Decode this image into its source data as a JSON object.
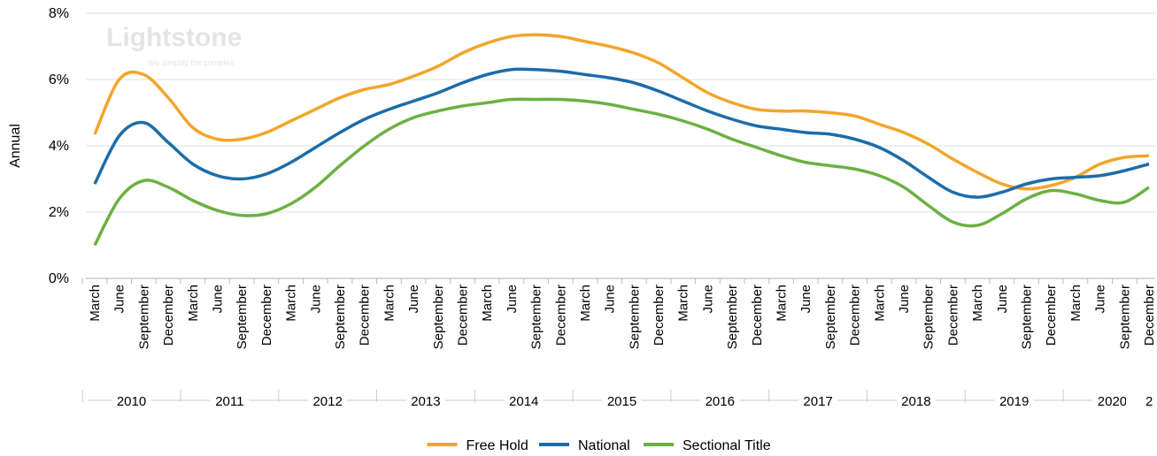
{
  "chart_data": {
    "type": "line",
    "y_label": "Annual",
    "watermark": {
      "name": "Lightstone",
      "tagline": "We simplify the complex"
    },
    "categories": [
      "March",
      "June",
      "September",
      "December",
      "March",
      "June",
      "September",
      "December",
      "March",
      "June",
      "September",
      "December",
      "March",
      "June",
      "September",
      "December",
      "March",
      "June",
      "September",
      "December",
      "March",
      "June",
      "September",
      "December",
      "March",
      "June",
      "September",
      "December",
      "March",
      "June",
      "September",
      "December",
      "March",
      "June",
      "September",
      "December",
      "March",
      "June",
      "September",
      "December",
      "March",
      "June",
      "September",
      "December"
    ],
    "year_groups": [
      "2010",
      "2011",
      "2012",
      "2013",
      "2014",
      "2015",
      "2016",
      "2017",
      "2018",
      "2019",
      "2020",
      "2"
    ],
    "series": [
      {
        "name": "Free Hold",
        "color": "#f2a52b",
        "values": [
          4.35,
          6.0,
          6.15,
          5.45,
          4.55,
          4.2,
          4.2,
          4.4,
          4.75,
          5.1,
          5.45,
          5.7,
          5.85,
          6.1,
          6.4,
          6.8,
          7.1,
          7.3,
          7.35,
          7.3,
          7.15,
          7.0,
          6.8,
          6.5,
          6.05,
          5.6,
          5.3,
          5.1,
          5.05,
          5.05,
          5.0,
          4.9,
          4.65,
          4.4,
          4.05,
          3.6,
          3.2,
          2.85,
          2.7,
          2.8,
          3.05,
          3.45,
          3.65,
          3.7
        ]
      },
      {
        "name": "National",
        "color": "#1d6ca8",
        "values": [
          2.85,
          4.3,
          4.7,
          4.1,
          3.45,
          3.1,
          3.0,
          3.15,
          3.5,
          3.95,
          4.4,
          4.8,
          5.1,
          5.35,
          5.6,
          5.9,
          6.15,
          6.3,
          6.3,
          6.25,
          6.15,
          6.05,
          5.9,
          5.65,
          5.35,
          5.05,
          4.8,
          4.6,
          4.5,
          4.4,
          4.35,
          4.2,
          3.95,
          3.55,
          3.05,
          2.6,
          2.45,
          2.6,
          2.85,
          3.0,
          3.05,
          3.1,
          3.25,
          3.45
        ]
      },
      {
        "name": "Sectional Title",
        "color": "#6cb043",
        "values": [
          1.0,
          2.4,
          2.95,
          2.75,
          2.35,
          2.05,
          1.9,
          1.95,
          2.25,
          2.75,
          3.4,
          4.0,
          4.5,
          4.85,
          5.05,
          5.2,
          5.3,
          5.4,
          5.4,
          5.4,
          5.35,
          5.25,
          5.1,
          4.95,
          4.75,
          4.5,
          4.2,
          3.95,
          3.7,
          3.5,
          3.4,
          3.3,
          3.1,
          2.75,
          2.2,
          1.7,
          1.6,
          1.95,
          2.4,
          2.65,
          2.55,
          2.35,
          2.3,
          2.75
        ]
      }
    ],
    "ylim": [
      0,
      8
    ],
    "yticks": [
      {
        "value": 0,
        "label": "0%"
      },
      {
        "value": 2,
        "label": "2%"
      },
      {
        "value": 4,
        "label": "4%"
      },
      {
        "value": 6,
        "label": "6%"
      },
      {
        "value": 8,
        "label": "8%"
      }
    ],
    "grid": true,
    "legend": "bottom"
  }
}
